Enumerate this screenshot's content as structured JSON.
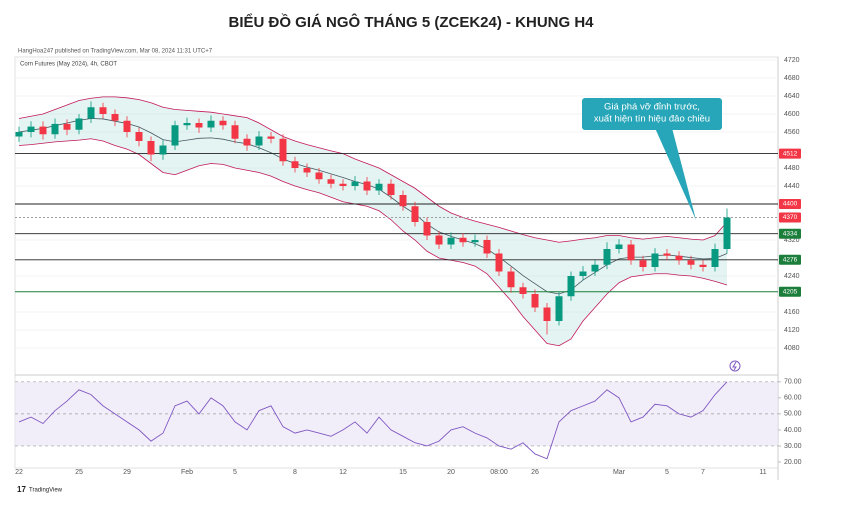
{
  "chart_data": {
    "type": "candlestick",
    "title": "BIỂU ĐỒ GIÁ NGÔ THÁNG 5 (ZCEK24) - KHUNG H4",
    "publisher": "HangHoa247 published on TradingView.com, Mar 08, 2024 11:31 UTC+7",
    "symbol": "Corn Futures (May 2024), 4h, CBOT",
    "brand": "TradingView",
    "annotation": [
      "Giá phá vỡ đỉnh trước,",
      "xuất hiện tín hiệu đảo chiều"
    ],
    "up_color": "#089981",
    "down_color": "#f23645",
    "band_color": "#b2dfdb",
    "categories": [
      "22",
      null,
      null,
      null,
      null,
      "25",
      null,
      null,
      null,
      "29",
      null,
      null,
      null,
      null,
      "Feb",
      null,
      null,
      null,
      "5",
      null,
      null,
      null,
      null,
      "8",
      null,
      null,
      null,
      "12",
      null,
      null,
      null,
      null,
      "15",
      null,
      null,
      null,
      "20",
      null,
      null,
      null,
      "08:00",
      null,
      null,
      "26",
      null,
      null,
      null,
      null,
      null,
      null,
      "Mar",
      null,
      null,
      null,
      "5",
      null,
      null,
      "7",
      null,
      null,
      null,
      null,
      "11"
    ],
    "open": [
      4550,
      4560,
      4572,
      4555,
      4578,
      4565,
      4590,
      4615,
      4600,
      4585,
      4560,
      4540,
      4510,
      4530,
      4575,
      4580,
      4570,
      4585,
      4575,
      4545,
      4530,
      4550,
      4545,
      4495,
      4480,
      4470,
      4455,
      4445,
      4440,
      4450,
      4430,
      4445,
      4420,
      4395,
      4360,
      4330,
      4310,
      4325,
      4315,
      4320,
      4290,
      4250,
      4215,
      4200,
      4170,
      4140,
      4195,
      4240,
      4250,
      4265,
      4300,
      4310,
      4275,
      4260,
      4290,
      4285,
      4275,
      4265,
      4260,
      4300,
      null,
      null,
      null
    ],
    "high": [
      4572,
      4584,
      4584,
      4590,
      4588,
      4600,
      4628,
      4625,
      4610,
      4595,
      4570,
      4550,
      4542,
      4585,
      4592,
      4590,
      4597,
      4595,
      4585,
      4555,
      4562,
      4560,
      4555,
      4505,
      4490,
      4480,
      4465,
      4455,
      4462,
      4460,
      4455,
      4455,
      4430,
      4405,
      4370,
      4340,
      4337,
      4335,
      4332,
      4330,
      4300,
      4260,
      4225,
      4210,
      4180,
      4205,
      4250,
      4262,
      4275,
      4315,
      4322,
      4320,
      4285,
      4302,
      4300,
      4295,
      4285,
      4275,
      4312,
      4390,
      null,
      null,
      null
    ],
    "low": [
      4538,
      4548,
      4543,
      4545,
      4553,
      4555,
      4580,
      4590,
      4573,
      4548,
      4528,
      4495,
      4498,
      4520,
      4565,
      4558,
      4560,
      4565,
      4535,
      4518,
      4520,
      4535,
      4485,
      4470,
      4460,
      4445,
      4435,
      4430,
      4430,
      4420,
      4420,
      4410,
      4385,
      4350,
      4320,
      4300,
      4300,
      4305,
      4305,
      4280,
      4240,
      4203,
      4190,
      4160,
      4110,
      4130,
      4185,
      4230,
      4240,
      4255,
      4290,
      4265,
      4250,
      4250,
      4275,
      4265,
      4255,
      4250,
      4250,
      4290,
      null,
      null,
      null
    ],
    "close": [
      4560,
      4572,
      4555,
      4578,
      4565,
      4590,
      4615,
      4600,
      4585,
      4560,
      4540,
      4510,
      4530,
      4575,
      4580,
      4570,
      4585,
      4575,
      4545,
      4530,
      4550,
      4545,
      4495,
      4480,
      4470,
      4455,
      4445,
      4440,
      4450,
      4430,
      4445,
      4420,
      4395,
      4360,
      4330,
      4310,
      4325,
      4315,
      4320,
      4290,
      4250,
      4215,
      4200,
      4170,
      4140,
      4195,
      4240,
      4250,
      4265,
      4300,
      4310,
      4275,
      4260,
      4290,
      4285,
      4275,
      4265,
      4260,
      4300,
      4370,
      null,
      null,
      null
    ],
    "bb_upper": [
      4590,
      4595,
      4600,
      4610,
      4620,
      4630,
      4635,
      4638,
      4638,
      4636,
      4632,
      4625,
      4615,
      4610,
      4608,
      4606,
      4604,
      4600,
      4596,
      4592,
      4580,
      4565,
      4550,
      4540,
      4532,
      4525,
      4518,
      4512,
      4500,
      4490,
      4480,
      4465,
      4450,
      4435,
      4415,
      4395,
      4380,
      4370,
      4362,
      4355,
      4348,
      4340,
      4332,
      4325,
      4320,
      4315,
      4318,
      4322,
      4325,
      4330,
      4330,
      4325,
      4322,
      4325,
      4328,
      4325,
      4322,
      4320,
      4330,
      4360,
      null,
      null,
      null
    ],
    "bb_middle": [
      4560,
      4564,
      4568,
      4574,
      4580,
      4586,
      4590,
      4589,
      4584,
      4579,
      4571,
      4558,
      4543,
      4538,
      4542,
      4546,
      4547,
      4544,
      4538,
      4534,
      4525,
      4514,
      4500,
      4490,
      4482,
      4475,
      4467,
      4459,
      4450,
      4443,
      4433,
      4415,
      4395,
      4378,
      4355,
      4338,
      4328,
      4320,
      4312,
      4300,
      4282,
      4262,
      4241,
      4223,
      4205,
      4200,
      4209,
      4231,
      4248,
      4265,
      4278,
      4282,
      4282,
      4285,
      4287,
      4284,
      4281,
      4278,
      4279,
      4290,
      null,
      null,
      null
    ],
    "bb_lower": [
      4530,
      4532,
      4535,
      4538,
      4540,
      4542,
      4545,
      4540,
      4530,
      4522,
      4510,
      4490,
      4470,
      4465,
      4475,
      4485,
      4490,
      4488,
      4480,
      4475,
      4470,
      4462,
      4450,
      4440,
      4432,
      4425,
      4415,
      4405,
      4400,
      4395,
      4385,
      4365,
      4340,
      4320,
      4295,
      4280,
      4275,
      4270,
      4262,
      4245,
      4215,
      4185,
      4150,
      4120,
      4090,
      4085,
      4100,
      4140,
      4170,
      4200,
      4225,
      4238,
      4242,
      4245,
      4245,
      4242,
      4240,
      4235,
      4228,
      4220,
      null,
      null,
      null
    ],
    "ylim": [
      4060,
      4740
    ],
    "yticks": [
      4720,
      4680,
      4640,
      4600,
      4560,
      4480,
      4440,
      4320,
      4240,
      4160,
      4120,
      4080
    ],
    "levels": [
      {
        "value": 4512,
        "color": "#f23645",
        "line": "#222222"
      },
      {
        "value": 4400,
        "color": "#f23645",
        "line": "#222222"
      },
      {
        "value": 4370,
        "color": "#f23645",
        "line": "#9e9e9e",
        "dashed": true
      },
      {
        "value": 4334,
        "color": "#1b7e3a",
        "line": "#222222"
      },
      {
        "value": 4276,
        "color": "#1b7e3a",
        "line": "#222222"
      },
      {
        "value": 4205,
        "color": "#1b7e3a",
        "line": "#1b7e3a"
      }
    ],
    "rsi": {
      "color": "#7e57c2",
      "values": [
        45,
        48,
        44,
        52,
        58,
        65,
        62,
        55,
        50,
        45,
        40,
        33,
        38,
        55,
        58,
        50,
        60,
        55,
        45,
        40,
        52,
        55,
        42,
        38,
        40,
        38,
        36,
        40,
        45,
        38,
        48,
        40,
        36,
        32,
        30,
        33,
        40,
        42,
        38,
        35,
        30,
        28,
        32,
        25,
        22,
        45,
        52,
        55,
        58,
        65,
        60,
        45,
        48,
        56,
        55,
        50,
        48,
        52,
        62,
        70,
        null,
        null,
        null
      ],
      "ylim": [
        15,
        73
      ],
      "yticks": [
        {
          "value": 70,
          "label": "70.00"
        },
        {
          "value": 60,
          "label": "60.00"
        },
        {
          "value": 50,
          "label": "50.00"
        },
        {
          "value": 40,
          "label": "40.00"
        },
        {
          "value": 30,
          "label": "30.00"
        },
        {
          "value": 20,
          "label": "20.00"
        }
      ],
      "band": [
        30,
        70
      ],
      "lines": [
        70,
        50,
        30
      ]
    }
  }
}
